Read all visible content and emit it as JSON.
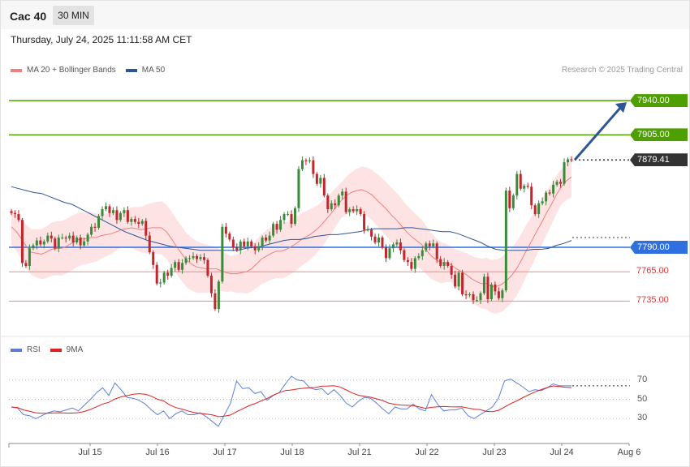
{
  "header": {
    "title": "Cac 40",
    "interval": "30 MIN",
    "datetime": "Thursday, July 24, 2025 11:11:58 AM CET"
  },
  "credit": "Research © 2025 Trading Central",
  "legend": [
    {
      "label": "MA 20 + Bollinger Bands",
      "color": "#f08080"
    },
    {
      "label": "MA 50",
      "color": "#2f5597"
    }
  ],
  "rsi_legend": [
    {
      "label": "RSI",
      "color": "#5b7fd9"
    },
    {
      "label": "9MA",
      "color": "#e02020"
    }
  ],
  "colors": {
    "bull": "#3a8a3a",
    "bear": "#c0262b",
    "green_level": "#4da000",
    "blue_level": "#2f6fe0",
    "red_level": "#f08a8a",
    "current_price": "#333333",
    "bollinger_fill": "#fde0e0",
    "ma20": "#f08080",
    "ma50": "#2f5597",
    "arrow": "#2f5597"
  },
  "chart_data": [
    {
      "type": "candlestick",
      "instrument": "Cac 40",
      "interval": "30 MIN",
      "ylim": [
        7703,
        7960
      ],
      "x_categories": [
        "Jul 15",
        "Jul 16",
        "Jul 17",
        "Jul 18",
        "Jul 21",
        "Jul 22",
        "Jul 23",
        "Jul 24",
        "Aug 6"
      ],
      "levels": [
        {
          "value": 7940,
          "label": "7940.00",
          "kind": "resistance"
        },
        {
          "value": 7905,
          "label": "7905.00",
          "kind": "resistance"
        },
        {
          "value": 7879.41,
          "label": "7879.41",
          "kind": "last"
        },
        {
          "value": 7790,
          "label": "7790.00",
          "kind": "pivot"
        },
        {
          "value": 7765,
          "label": "7765.00",
          "kind": "support"
        },
        {
          "value": 7735,
          "label": "7735.00",
          "kind": "support"
        }
      ],
      "ohlc_close": [
        7825,
        7824,
        7818,
        7774,
        7771,
        7789,
        7792,
        7797,
        7793,
        7796,
        7802,
        7799,
        7789,
        7800,
        7800,
        7799,
        7802,
        7795,
        7800,
        7792,
        7796,
        7803,
        7811,
        7810,
        7822,
        7829,
        7832,
        7825,
        7828,
        7818,
        7825,
        7828,
        7816,
        7819,
        7816,
        7814,
        7817,
        7802,
        7785,
        7772,
        7753,
        7754,
        7764,
        7761,
        7769,
        7775,
        7767,
        7774,
        7779,
        7779,
        7781,
        7778,
        7780,
        7777,
        7761,
        7743,
        7727,
        7755,
        7811,
        7804,
        7798,
        7790,
        7787,
        7796,
        7791,
        7796,
        7791,
        7787,
        7791,
        7800,
        7797,
        7802,
        7814,
        7808,
        7818,
        7824,
        7824,
        7814,
        7830,
        7870,
        7879,
        7878,
        7879,
        7865,
        7855,
        7861,
        7843,
        7829,
        7835,
        7833,
        7843,
        7847,
        7826,
        7829,
        7827,
        7829,
        7824,
        7808,
        7808,
        7801,
        7795,
        7800,
        7790,
        7779,
        7789,
        7793,
        7795,
        7787,
        7777,
        7775,
        7768,
        7779,
        7781,
        7787,
        7794,
        7791,
        7794,
        7778,
        7771,
        7775,
        7771,
        7762,
        7750,
        7764,
        7742,
        7741,
        7742,
        7736,
        7736,
        7743,
        7760,
        7737,
        7752,
        7745,
        7738,
        7746,
        7848,
        7830,
        7843,
        7865,
        7850,
        7853,
        7852,
        7833,
        7824,
        7835,
        7837,
        7846,
        7845,
        7854,
        7857,
        7855,
        7877,
        7880,
        7879
      ],
      "ma20": [
        7811,
        7806,
        7799,
        7791,
        7785,
        7784,
        7783,
        7785,
        7788,
        7789,
        7789,
        7791,
        7794,
        7797,
        7799,
        7799,
        7800,
        7800,
        7802,
        7803,
        7804,
        7806,
        7808,
        7809,
        7810,
        7809,
        7808,
        7809,
        7810,
        7810,
        7810,
        7806,
        7799,
        7791,
        7784,
        7777,
        7773,
        7770,
        7769,
        7768,
        7768,
        7768,
        7766,
        7764,
        7763,
        7763,
        7764,
        7765,
        7768,
        7773,
        7778,
        7781,
        7784,
        7786,
        7786,
        7788,
        7791,
        7794,
        7798,
        7801,
        7804,
        7808,
        7813,
        7819,
        7825,
        7832,
        7838,
        7843,
        7846,
        7848,
        7849,
        7847,
        7844,
        7839,
        7834,
        7829,
        7823,
        7818,
        7812,
        7806,
        7801,
        7797,
        7793,
        7787,
        7781,
        7777,
        7774,
        7774,
        7772,
        7768,
        7765,
        7762,
        7758,
        7755,
        7753,
        7753,
        7750,
        7750,
        7752,
        7756,
        7761,
        7768,
        7777,
        7787,
        7796,
        7806,
        7815,
        7825,
        7834,
        7844,
        7852,
        7858,
        7862
      ],
      "ma50": [
        7852,
        7850,
        7848,
        7846,
        7845,
        7842,
        7839,
        7836,
        7834,
        7830,
        7826,
        7822,
        7818,
        7814,
        7810,
        7806,
        7803,
        7800,
        7797,
        7795,
        7793,
        7791,
        7790,
        7789,
        7788,
        7787,
        7787,
        7787,
        7787,
        7787,
        7787,
        7789,
        7790,
        7791,
        7793,
        7795,
        7797,
        7798,
        7798,
        7799,
        7801,
        7802,
        7803,
        7803,
        7804,
        7805,
        7806,
        7808,
        7809,
        7809,
        7809,
        7809,
        7810,
        7810,
        7809,
        7808,
        7807,
        7806,
        7806,
        7804,
        7801,
        7798,
        7795,
        7791,
        7788,
        7787,
        7787,
        7787,
        7787,
        7788,
        7788,
        7789,
        7792,
        7794,
        7797
      ],
      "rsi_ylim": [
        10,
        90
      ],
      "rsi_ticks": [
        "70",
        "50",
        "30"
      ],
      "rsi": [
        42,
        41,
        34,
        33,
        30,
        33,
        36,
        38,
        37,
        39,
        41,
        38,
        44,
        50,
        57,
        62,
        54,
        67,
        60,
        52,
        51,
        49,
        45,
        39,
        34,
        38,
        30,
        35,
        38,
        34,
        34,
        36,
        32,
        27,
        22,
        34,
        46,
        69,
        61,
        62,
        56,
        58,
        49,
        54,
        57,
        66,
        74,
        70,
        69,
        62,
        60,
        61,
        55,
        60,
        54,
        46,
        42,
        48,
        52,
        51,
        46,
        40,
        35,
        42,
        40,
        40,
        45,
        40,
        38,
        55,
        45,
        38,
        39,
        39,
        41,
        33,
        30,
        34,
        38,
        42,
        51,
        69,
        71,
        67,
        63,
        58,
        60,
        59,
        62,
        66,
        64,
        64,
        64
      ]
    }
  ]
}
